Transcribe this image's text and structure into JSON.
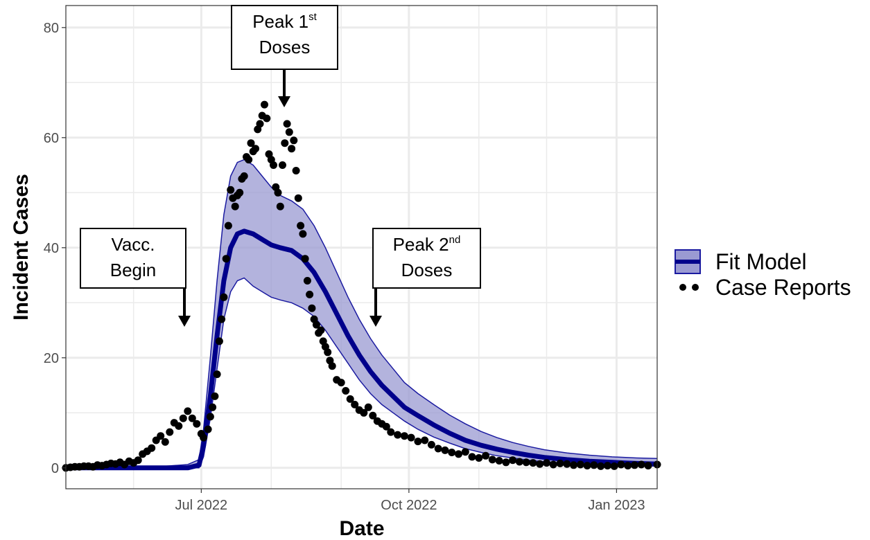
{
  "chart_data": {
    "type": "line",
    "xlabel": "Date",
    "ylabel": "Incident Cases",
    "xlim": [
      "2022-05-02",
      "2023-01-19"
    ],
    "ylim": [
      -3.8,
      84
    ],
    "x_ticks": [
      {
        "date": "2022-07-01",
        "label": "Jul 2022"
      },
      {
        "date": "2022-10-01",
        "label": "Oct 2022"
      },
      {
        "date": "2023-01-01",
        "label": "Jan 2023"
      }
    ],
    "x_minor_ticks": [
      "2022-06-01",
      "2022-08-01",
      "2022-09-01",
      "2022-11-01",
      "2022-12-01"
    ],
    "y_ticks": [
      0,
      20,
      40,
      60,
      80
    ],
    "y_minor_ticks": [
      10,
      30,
      50,
      70
    ],
    "grid": true,
    "legend_position": "right",
    "colors": {
      "fit_line": "#00008b",
      "band_fill": "#9a9ad2",
      "band_edge": "#1a1aa0",
      "points": "#000000",
      "grid": "#ebebeb",
      "panel_border": "#333333"
    },
    "legend": [
      {
        "label": "Fit Model",
        "kind": "line-band"
      },
      {
        "label": "Case Reports",
        "kind": "points"
      }
    ],
    "series": [
      {
        "name": "Fit Model",
        "kind": "line",
        "points": [
          [
            "2022-05-02",
            0
          ],
          [
            "2022-06-15",
            0
          ],
          [
            "2022-06-25",
            0
          ],
          [
            "2022-06-30",
            0.5
          ],
          [
            "2022-07-02",
            4
          ],
          [
            "2022-07-05",
            13
          ],
          [
            "2022-07-08",
            24
          ],
          [
            "2022-07-11",
            34
          ],
          [
            "2022-07-14",
            40
          ],
          [
            "2022-07-17",
            42.5
          ],
          [
            "2022-07-20",
            43
          ],
          [
            "2022-07-24",
            42.5
          ],
          [
            "2022-07-28",
            41.5
          ],
          [
            "2022-08-01",
            40.5
          ],
          [
            "2022-08-05",
            40
          ],
          [
            "2022-08-10",
            39.5
          ],
          [
            "2022-08-15",
            38
          ],
          [
            "2022-08-20",
            35.5
          ],
          [
            "2022-08-25",
            32
          ],
          [
            "2022-08-30",
            28
          ],
          [
            "2022-09-04",
            24
          ],
          [
            "2022-09-09",
            20.5
          ],
          [
            "2022-09-14",
            17.5
          ],
          [
            "2022-09-19",
            15
          ],
          [
            "2022-09-24",
            13
          ],
          [
            "2022-09-29",
            11
          ],
          [
            "2022-10-05",
            9.5
          ],
          [
            "2022-10-12",
            7.8
          ],
          [
            "2022-10-19",
            6.3
          ],
          [
            "2022-10-26",
            5
          ],
          [
            "2022-11-02",
            4.1
          ],
          [
            "2022-11-09",
            3.4
          ],
          [
            "2022-11-16",
            2.8
          ],
          [
            "2022-11-23",
            2.3
          ],
          [
            "2022-11-30",
            1.9
          ],
          [
            "2022-12-10",
            1.5
          ],
          [
            "2022-12-20",
            1.2
          ],
          [
            "2022-12-30",
            1.0
          ],
          [
            "2023-01-10",
            0.8
          ],
          [
            "2023-01-19",
            0.7
          ]
        ],
        "lower": [
          [
            "2022-05-02",
            0
          ],
          [
            "2022-06-30",
            0
          ],
          [
            "2022-07-02",
            2
          ],
          [
            "2022-07-05",
            9
          ],
          [
            "2022-07-08",
            18
          ],
          [
            "2022-07-11",
            27
          ],
          [
            "2022-07-14",
            32
          ],
          [
            "2022-07-17",
            34
          ],
          [
            "2022-07-20",
            34.5
          ],
          [
            "2022-07-24",
            33
          ],
          [
            "2022-07-28",
            32
          ],
          [
            "2022-08-01",
            31
          ],
          [
            "2022-08-05",
            30.5
          ],
          [
            "2022-08-10",
            30
          ],
          [
            "2022-08-15",
            29
          ],
          [
            "2022-08-20",
            27.5
          ],
          [
            "2022-08-25",
            25
          ],
          [
            "2022-08-30",
            22
          ],
          [
            "2022-09-04",
            19
          ],
          [
            "2022-09-09",
            16
          ],
          [
            "2022-09-14",
            13.5
          ],
          [
            "2022-09-19",
            11.5
          ],
          [
            "2022-09-24",
            10
          ],
          [
            "2022-09-29",
            8.5
          ],
          [
            "2022-10-05",
            7
          ],
          [
            "2022-10-12",
            5.6
          ],
          [
            "2022-10-19",
            4.5
          ],
          [
            "2022-10-26",
            3.5
          ],
          [
            "2022-11-02",
            2.8
          ],
          [
            "2022-11-09",
            2.2
          ],
          [
            "2022-11-16",
            1.8
          ],
          [
            "2022-11-23",
            1.4
          ],
          [
            "2022-11-30",
            1.1
          ],
          [
            "2022-12-10",
            0.8
          ],
          [
            "2022-12-20",
            0.6
          ],
          [
            "2022-12-30",
            0.5
          ],
          [
            "2023-01-10",
            0.4
          ],
          [
            "2023-01-19",
            0.3
          ]
        ],
        "upper": [
          [
            "2022-05-02",
            0.2
          ],
          [
            "2022-06-15",
            0.3
          ],
          [
            "2022-06-25",
            0.6
          ],
          [
            "2022-06-30",
            1.5
          ],
          [
            "2022-07-02",
            7
          ],
          [
            "2022-07-05",
            20
          ],
          [
            "2022-07-08",
            34
          ],
          [
            "2022-07-11",
            46
          ],
          [
            "2022-07-14",
            53
          ],
          [
            "2022-07-17",
            55.5
          ],
          [
            "2022-07-20",
            56
          ],
          [
            "2022-07-24",
            55
          ],
          [
            "2022-07-28",
            53
          ],
          [
            "2022-08-01",
            51
          ],
          [
            "2022-08-05",
            49.5
          ],
          [
            "2022-08-10",
            48.5
          ],
          [
            "2022-08-15",
            47
          ],
          [
            "2022-08-20",
            44
          ],
          [
            "2022-08-25",
            40
          ],
          [
            "2022-08-30",
            35.5
          ],
          [
            "2022-09-04",
            31
          ],
          [
            "2022-09-09",
            27
          ],
          [
            "2022-09-14",
            23.5
          ],
          [
            "2022-09-19",
            20.5
          ],
          [
            "2022-09-24",
            18
          ],
          [
            "2022-09-29",
            15.5
          ],
          [
            "2022-10-05",
            13.5
          ],
          [
            "2022-10-12",
            11.5
          ],
          [
            "2022-10-19",
            9.6
          ],
          [
            "2022-10-26",
            8
          ],
          [
            "2022-11-02",
            6.6
          ],
          [
            "2022-11-09",
            5.5
          ],
          [
            "2022-11-16",
            4.6
          ],
          [
            "2022-11-23",
            3.9
          ],
          [
            "2022-11-30",
            3.3
          ],
          [
            "2022-12-10",
            2.7
          ],
          [
            "2022-12-20",
            2.3
          ],
          [
            "2022-12-30",
            2.0
          ],
          [
            "2023-01-10",
            1.8
          ],
          [
            "2023-01-19",
            1.7
          ]
        ]
      },
      {
        "name": "Case Reports",
        "kind": "scatter",
        "points": [
          [
            "2022-05-02",
            0
          ],
          [
            "2022-05-04",
            0.1
          ],
          [
            "2022-05-06",
            0.2
          ],
          [
            "2022-05-08",
            0.2
          ],
          [
            "2022-05-10",
            0.3
          ],
          [
            "2022-05-12",
            0.3
          ],
          [
            "2022-05-14",
            0.2
          ],
          [
            "2022-05-16",
            0.5
          ],
          [
            "2022-05-18",
            0.4
          ],
          [
            "2022-05-20",
            0.6
          ],
          [
            "2022-05-22",
            0.8
          ],
          [
            "2022-05-24",
            0.7
          ],
          [
            "2022-05-26",
            1.0
          ],
          [
            "2022-05-28",
            0.6
          ],
          [
            "2022-05-30",
            1.2
          ],
          [
            "2022-06-01",
            0.9
          ],
          [
            "2022-06-03",
            1.4
          ],
          [
            "2022-06-05",
            2.5
          ],
          [
            "2022-06-07",
            3.0
          ],
          [
            "2022-06-09",
            3.6
          ],
          [
            "2022-06-11",
            5.0
          ],
          [
            "2022-06-13",
            5.8
          ],
          [
            "2022-06-15",
            4.7
          ],
          [
            "2022-06-17",
            6.5
          ],
          [
            "2022-06-19",
            8.2
          ],
          [
            "2022-06-21",
            7.6
          ],
          [
            "2022-06-23",
            9.0
          ],
          [
            "2022-06-25",
            10.3
          ],
          [
            "2022-06-27",
            9.0
          ],
          [
            "2022-06-29",
            8.0
          ],
          [
            "2022-07-01",
            6.2
          ],
          [
            "2022-07-02",
            5.5
          ],
          [
            "2022-07-04",
            7.0
          ],
          [
            "2022-07-05",
            9.3
          ],
          [
            "2022-07-06",
            11.0
          ],
          [
            "2022-07-07",
            13.0
          ],
          [
            "2022-07-08",
            17.0
          ],
          [
            "2022-07-09",
            23.0
          ],
          [
            "2022-07-10",
            27.0
          ],
          [
            "2022-07-11",
            31.0
          ],
          [
            "2022-07-12",
            38.0
          ],
          [
            "2022-07-13",
            44.0
          ],
          [
            "2022-07-14",
            50.5
          ],
          [
            "2022-07-15",
            49.0
          ],
          [
            "2022-07-16",
            47.5
          ],
          [
            "2022-07-17",
            49.5
          ],
          [
            "2022-07-18",
            50.0
          ],
          [
            "2022-07-19",
            52.5
          ],
          [
            "2022-07-20",
            53.0
          ],
          [
            "2022-07-21",
            56.5
          ],
          [
            "2022-07-22",
            56.0
          ],
          [
            "2022-07-23",
            59.0
          ],
          [
            "2022-07-24",
            57.5
          ],
          [
            "2022-07-25",
            58.0
          ],
          [
            "2022-07-26",
            61.5
          ],
          [
            "2022-07-27",
            62.5
          ],
          [
            "2022-07-28",
            64.0
          ],
          [
            "2022-07-29",
            66.0
          ],
          [
            "2022-07-30",
            63.5
          ],
          [
            "2022-07-31",
            57.0
          ],
          [
            "2022-08-01",
            56.0
          ],
          [
            "2022-08-02",
            55.0
          ],
          [
            "2022-08-03",
            51.0
          ],
          [
            "2022-08-04",
            50.0
          ],
          [
            "2022-08-05",
            47.5
          ],
          [
            "2022-08-06",
            55.0
          ],
          [
            "2022-08-07",
            59.0
          ],
          [
            "2022-08-08",
            62.5
          ],
          [
            "2022-08-09",
            61.0
          ],
          [
            "2022-08-10",
            58.0
          ],
          [
            "2022-08-11",
            59.5
          ],
          [
            "2022-08-12",
            54.0
          ],
          [
            "2022-08-13",
            49.0
          ],
          [
            "2022-08-14",
            44.0
          ],
          [
            "2022-08-15",
            42.5
          ],
          [
            "2022-08-16",
            38.0
          ],
          [
            "2022-08-17",
            34.0
          ],
          [
            "2022-08-18",
            31.5
          ],
          [
            "2022-08-19",
            29.0
          ],
          [
            "2022-08-20",
            27.0
          ],
          [
            "2022-08-21",
            26.0
          ],
          [
            "2022-08-22",
            24.5
          ],
          [
            "2022-08-23",
            25.0
          ],
          [
            "2022-08-24",
            23.0
          ],
          [
            "2022-08-25",
            22.0
          ],
          [
            "2022-08-26",
            21.0
          ],
          [
            "2022-08-27",
            19.5
          ],
          [
            "2022-08-28",
            18.5
          ],
          [
            "2022-08-30",
            16.0
          ],
          [
            "2022-09-01",
            15.5
          ],
          [
            "2022-09-03",
            14.0
          ],
          [
            "2022-09-05",
            12.5
          ],
          [
            "2022-09-07",
            11.5
          ],
          [
            "2022-09-09",
            10.5
          ],
          [
            "2022-09-11",
            10.0
          ],
          [
            "2022-09-13",
            11.0
          ],
          [
            "2022-09-15",
            9.5
          ],
          [
            "2022-09-17",
            8.5
          ],
          [
            "2022-09-19",
            8.0
          ],
          [
            "2022-09-21",
            7.5
          ],
          [
            "2022-09-23",
            6.5
          ],
          [
            "2022-09-26",
            6.0
          ],
          [
            "2022-09-29",
            5.8
          ],
          [
            "2022-10-02",
            5.5
          ],
          [
            "2022-10-05",
            4.8
          ],
          [
            "2022-10-08",
            5.0
          ],
          [
            "2022-10-11",
            4.2
          ],
          [
            "2022-10-14",
            3.5
          ],
          [
            "2022-10-17",
            3.2
          ],
          [
            "2022-10-20",
            2.8
          ],
          [
            "2022-10-23",
            2.5
          ],
          [
            "2022-10-26",
            2.9
          ],
          [
            "2022-10-29",
            2.0
          ],
          [
            "2022-11-01",
            1.8
          ],
          [
            "2022-11-04",
            2.2
          ],
          [
            "2022-11-07",
            1.5
          ],
          [
            "2022-11-10",
            1.3
          ],
          [
            "2022-11-13",
            1.0
          ],
          [
            "2022-11-16",
            1.4
          ],
          [
            "2022-11-19",
            1.1
          ],
          [
            "2022-11-22",
            1.0
          ],
          [
            "2022-11-25",
            0.9
          ],
          [
            "2022-11-28",
            0.7
          ],
          [
            "2022-12-01",
            0.9
          ],
          [
            "2022-12-04",
            0.6
          ],
          [
            "2022-12-07",
            0.8
          ],
          [
            "2022-12-10",
            0.7
          ],
          [
            "2022-12-13",
            0.5
          ],
          [
            "2022-12-16",
            0.6
          ],
          [
            "2022-12-19",
            0.4
          ],
          [
            "2022-12-22",
            0.5
          ],
          [
            "2022-12-25",
            0.3
          ],
          [
            "2022-12-28",
            0.4
          ],
          [
            "2022-12-31",
            0.3
          ],
          [
            "2023-01-03",
            0.6
          ],
          [
            "2023-01-06",
            0.4
          ],
          [
            "2023-01-09",
            0.5
          ],
          [
            "2023-01-12",
            0.6
          ],
          [
            "2023-01-15",
            0.4
          ],
          [
            "2023-01-19",
            0.6
          ]
        ]
      }
    ],
    "annotations": [
      {
        "id": "vacc-begin",
        "lines": [
          "Vacc.",
          "Begin"
        ],
        "date": "2022-06-27"
      },
      {
        "id": "peak-1st",
        "lines": [
          {
            "text": "Peak 1",
            "sup": "st"
          },
          "Doses"
        ],
        "date": "2022-08-07"
      },
      {
        "id": "peak-2nd",
        "lines": [
          {
            "text": "Peak 2",
            "sup": "nd"
          },
          "Doses"
        ],
        "date": "2022-09-22"
      }
    ]
  }
}
